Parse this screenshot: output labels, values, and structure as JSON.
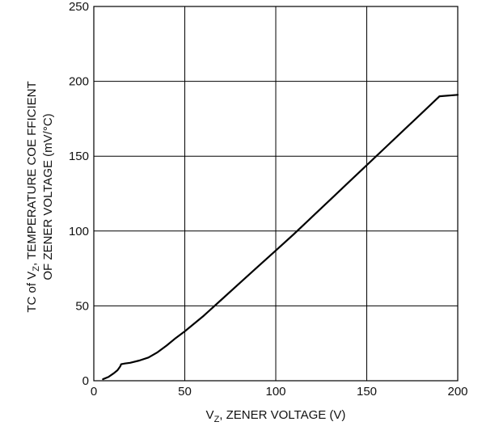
{
  "chart_data": {
    "type": "line",
    "title": "",
    "xlabel": {
      "pre": "V",
      "sub": "Z",
      "post": ", ZENER VOLTAGE (V)"
    },
    "ylabel": {
      "line1_pre": "TC of V",
      "line1_sub": "Z",
      "line1_post": ", TEMPERATURE COE FFICIENT",
      "line2": "OF ZENER VOLTAGE (mV/°C)"
    },
    "xlim": [
      0,
      200
    ],
    "ylim": [
      0,
      250
    ],
    "x_ticks": [
      0,
      50,
      100,
      150,
      200
    ],
    "y_ticks": [
      0,
      50,
      100,
      150,
      200,
      250
    ],
    "x_tick_labels": [
      "0",
      "50",
      "100",
      "150",
      "200"
    ],
    "y_tick_labels": [
      "0",
      "50",
      "100",
      "150",
      "200",
      "250"
    ],
    "grid": true,
    "series": [
      {
        "points": [
          [
            5,
            1
          ],
          [
            8,
            2.5
          ],
          [
            11,
            5
          ],
          [
            13,
            7
          ],
          [
            14.5,
            9.5
          ],
          [
            15,
            11
          ],
          [
            17,
            11.5
          ],
          [
            20,
            12
          ],
          [
            25,
            13.5
          ],
          [
            30,
            15.5
          ],
          [
            35,
            19
          ],
          [
            40,
            23.5
          ],
          [
            45,
            28.5
          ],
          [
            50,
            33
          ],
          [
            60,
            43
          ],
          [
            70,
            54
          ],
          [
            80,
            65
          ],
          [
            90,
            76
          ],
          [
            100,
            87
          ],
          [
            110,
            98
          ],
          [
            120,
            109.5
          ],
          [
            130,
            121
          ],
          [
            140,
            132.5
          ],
          [
            150,
            144
          ],
          [
            160,
            155.5
          ],
          [
            170,
            167
          ],
          [
            180,
            178.5
          ],
          [
            190,
            190
          ],
          [
            200,
            191
          ]
        ]
      }
    ]
  }
}
